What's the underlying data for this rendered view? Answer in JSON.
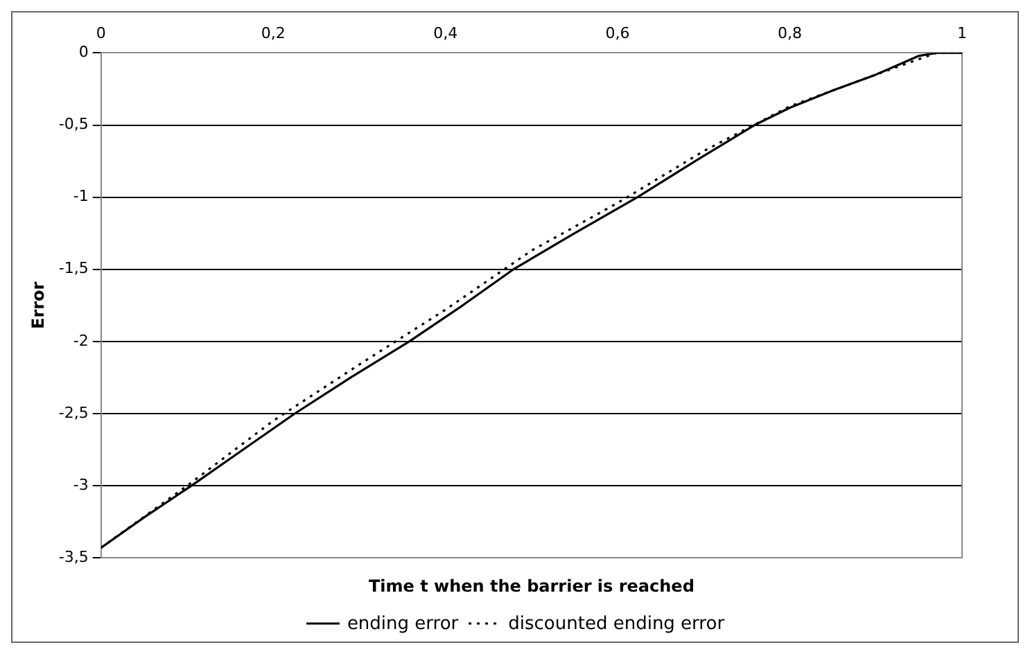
{
  "chart_data": {
    "type": "line",
    "xlabel": "Time t when the barrier is reached",
    "ylabel": "Error",
    "xlim": [
      0,
      1
    ],
    "xticks": [
      {
        "value": 0,
        "label": "0"
      },
      {
        "value": 0.2,
        "label": "0,2"
      },
      {
        "value": 0.4,
        "label": "0,4"
      },
      {
        "value": 0.6,
        "label": "0,6"
      },
      {
        "value": 0.8,
        "label": "0,8"
      },
      {
        "value": 1,
        "label": "1"
      }
    ],
    "ylim": [
      -3.5,
      0
    ],
    "yticks": [
      {
        "value": -3.5,
        "label": "-3,5"
      },
      {
        "value": -3,
        "label": "-3"
      },
      {
        "value": -2.5,
        "label": "-2,5"
      },
      {
        "value": -2,
        "label": "-2"
      },
      {
        "value": -1.5,
        "label": "-1,5"
      },
      {
        "value": -1,
        "label": "-1"
      },
      {
        "value": -0.5,
        "label": "-0,5"
      },
      {
        "value": 0,
        "label": "0"
      }
    ],
    "grid": "y",
    "legend": "bottom",
    "marker": "none",
    "series": [
      {
        "name": "ending error",
        "color": "#000000",
        "line_style": "solid",
        "x": [
          0,
          0.05,
          0.105,
          0.165,
          0.225,
          0.29,
          0.358,
          0.42,
          0.479,
          0.55,
          0.623,
          0.69,
          0.759,
          0.8,
          0.85,
          0.9,
          0.95,
          0.97,
          1
        ],
        "values": [
          -3.43,
          -3.22,
          -3.0,
          -2.75,
          -2.5,
          -2.25,
          -2.0,
          -1.75,
          -1.5,
          -1.25,
          -1.0,
          -0.75,
          -0.5,
          -0.38,
          -0.26,
          -0.15,
          -0.02,
          0,
          0
        ]
      },
      {
        "name": "discounted ending error",
        "color": "#000000",
        "line_style": "dotted",
        "x": [
          0,
          0.1,
          0.2,
          0.3,
          0.4,
          0.5,
          0.6,
          0.7,
          0.8,
          0.9,
          0.97,
          1
        ],
        "values": [
          -3.43,
          -3.0,
          -2.55,
          -2.16,
          -1.78,
          -1.37,
          -1.04,
          -0.68,
          -0.37,
          -0.15,
          0,
          0
        ]
      }
    ]
  }
}
